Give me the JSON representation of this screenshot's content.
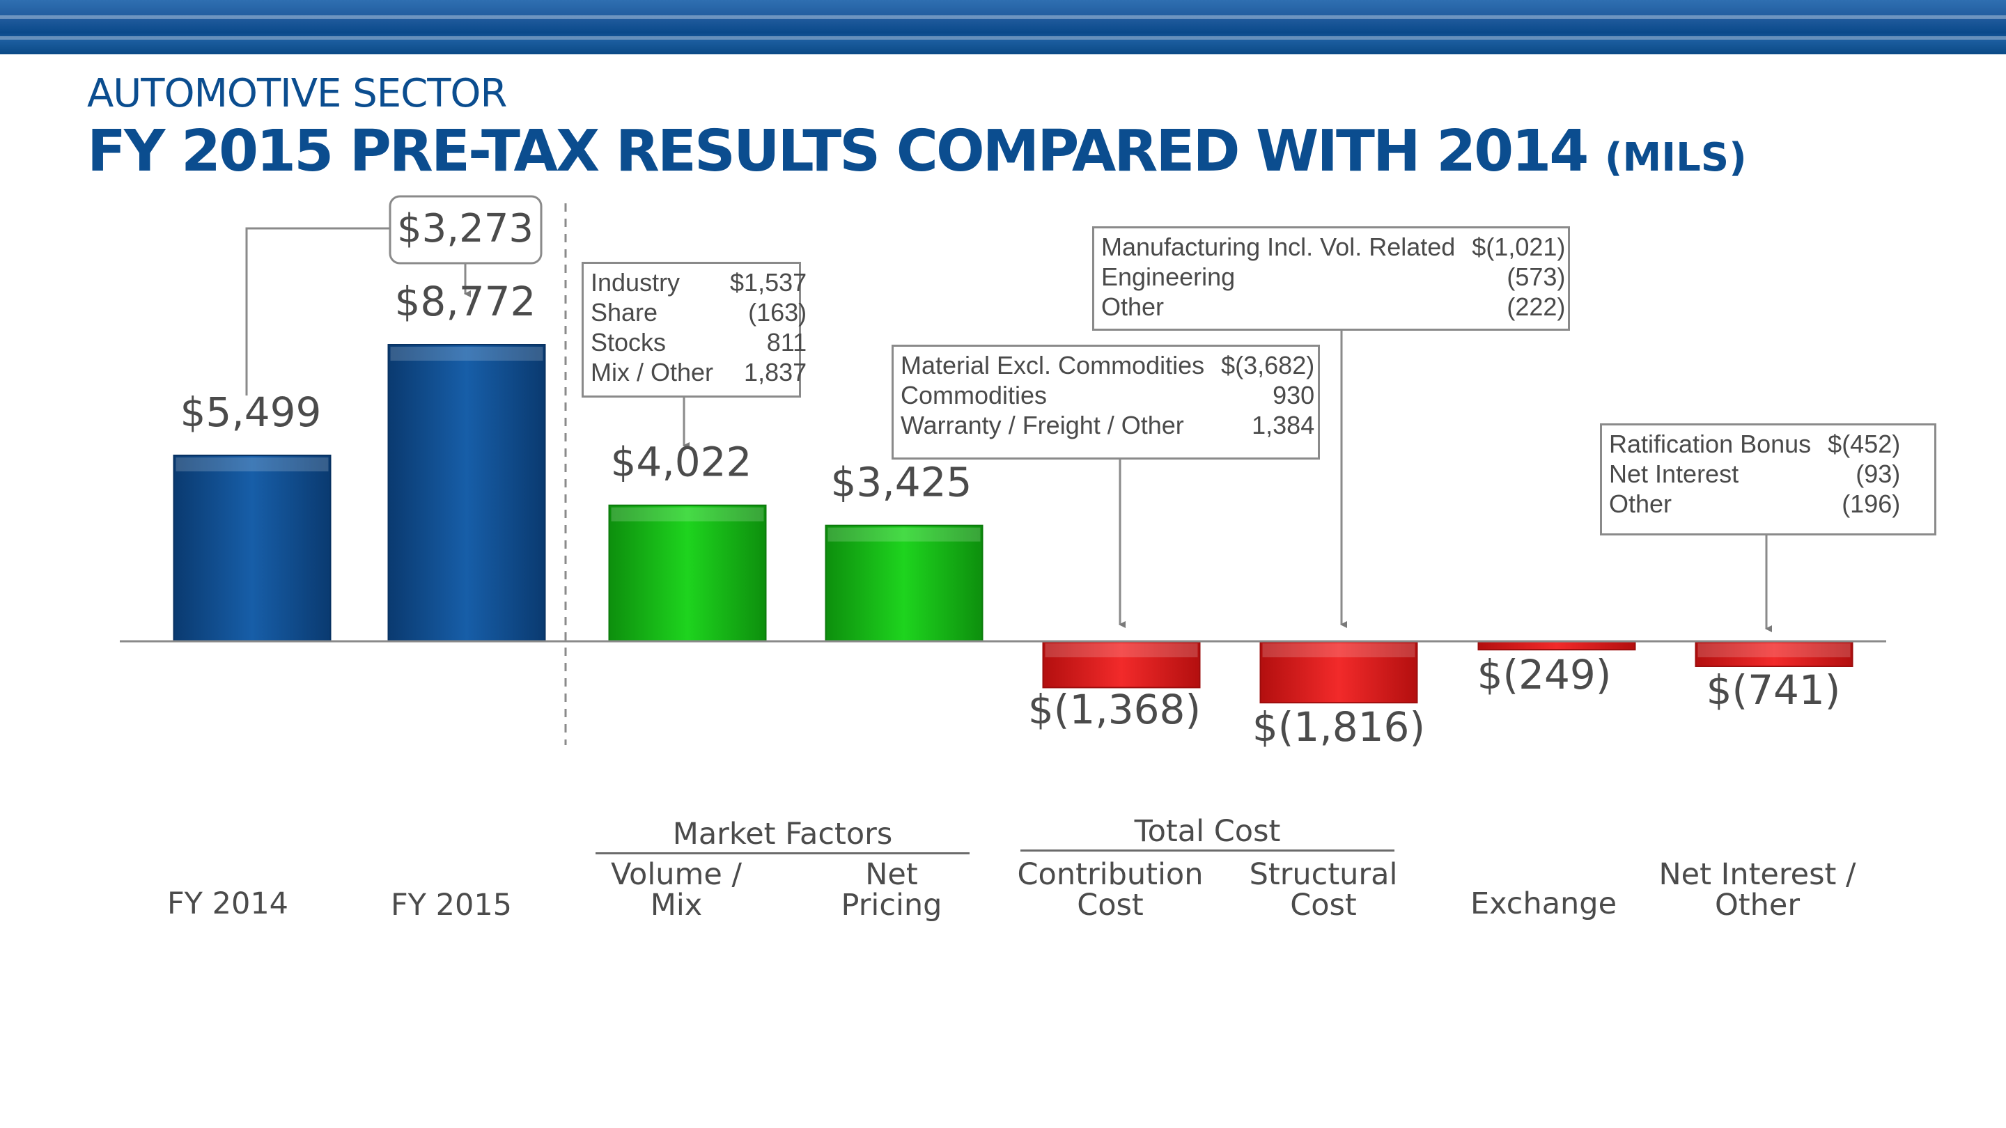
{
  "header": {
    "subtitle": "AUTOMOTIVE SECTOR",
    "title": "FY 2015 PRE-TAX RESULTS COMPARED WITH 2014",
    "unit": "(MILS)"
  },
  "colors": {
    "blue": "#0d4a8a",
    "green": "#12b312",
    "red": "#e01515",
    "title": "#0b4d8f"
  },
  "chart_data": {
    "type": "bar",
    "categories": [
      "FY 2014",
      "FY 2015",
      "Volume / Mix",
      "Net Pricing",
      "Contribution Cost",
      "Structural Cost",
      "Exchange",
      "Net Interest / Other"
    ],
    "values": [
      5499,
      8772,
      4022,
      3425,
      -1368,
      -1816,
      -249,
      -741
    ],
    "value_labels": [
      "$5,499",
      "$8,772",
      "$4,022",
      "$3,425",
      "$(1,368)",
      "$(1,816)",
      "$(249)",
      "$(741)"
    ],
    "bar_colors": [
      "blue",
      "blue",
      "green",
      "green",
      "red",
      "red",
      "red",
      "red"
    ],
    "difference": {
      "label": "$3,273",
      "value": 3273
    },
    "groups": [
      {
        "label": "Market Factors",
        "categories": [
          "Volume / Mix",
          "Net Pricing"
        ]
      },
      {
        "label": "Total Cost",
        "categories": [
          "Contribution Cost",
          "Structural Cost"
        ]
      }
    ],
    "annotations": {
      "market": [
        {
          "label": "Industry",
          "value": "$1,537"
        },
        {
          "label": "Share",
          "value": "(163)"
        },
        {
          "label": "Stocks",
          "value": "811"
        },
        {
          "label": "Mix / Other",
          "value": "1,837"
        }
      ],
      "contribution": [
        {
          "label": "Material Excl. Commodities",
          "value": "$(3,682)"
        },
        {
          "label": "Commodities",
          "value": "930"
        },
        {
          "label": "Warranty / Freight / Other",
          "value": "1,384"
        }
      ],
      "structural": [
        {
          "label": "Manufacturing Incl. Vol. Related",
          "value": "$(1,021)"
        },
        {
          "label": "Engineering",
          "value": "(573)"
        },
        {
          "label": "Other",
          "value": "(222)"
        }
      ],
      "other": [
        {
          "label": "Ratification Bonus",
          "value": "$(452)"
        },
        {
          "label": "Net Interest",
          "value": "(93)"
        },
        {
          "label": "Other",
          "value": "(196)"
        }
      ]
    }
  }
}
